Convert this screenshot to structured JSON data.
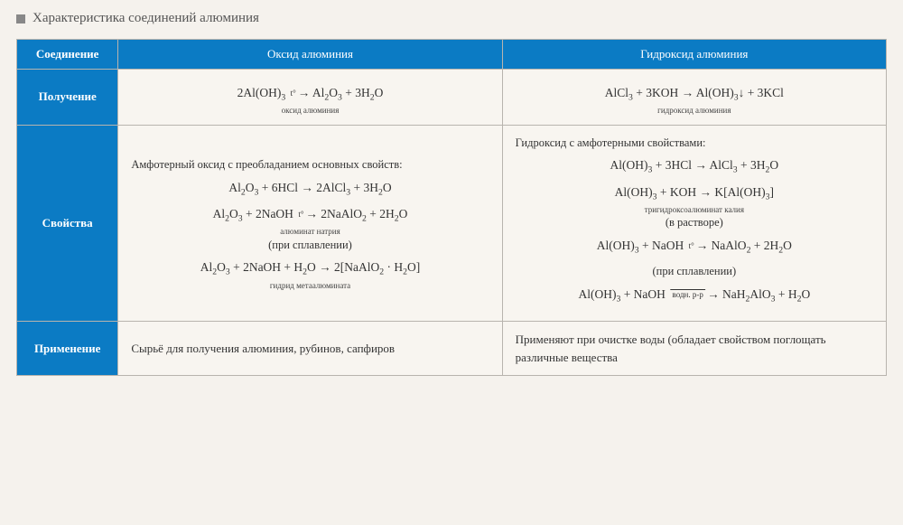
{
  "title": "Характеристика соединений алюминия",
  "table": {
    "columns": [
      "Соединение",
      "Оксид алюминия",
      "Гидроксид алюминия"
    ],
    "rows": {
      "preparation": {
        "label": "Получение",
        "oxide": {
          "formula_html": "2Al(OH)<sub>3</sub> <span class='arrow-label'>t°</span>→ Al<sub>2</sub>O<sub>3</sub> + 3H<sub>2</sub>O",
          "under": "оксид\nалюминия"
        },
        "hydroxide": {
          "formula_html": "AlCl<sub>3</sub> + 3KOH → Al(OH)<sub>3</sub>↓ + 3KCl",
          "under": "гидроксид\nалюминия"
        }
      },
      "properties": {
        "label": "Свойства",
        "oxide": {
          "intro": "Амфотерный оксид с преобладанием основных свойств:",
          "eq1_html": "Al<sub>2</sub>O<sub>3</sub> + 6HCl → 2AlCl<sub>3</sub> + 3H<sub>2</sub>O",
          "eq2_html": "Al<sub>2</sub>O<sub>3</sub> + 2NaOH <span class='arrow-label'>t°</span>→ 2NaAlO<sub>2</sub> + 2H<sub>2</sub>O",
          "eq2_under": "алюминат\nнатрия",
          "eq2_note": "(при сплавлении)",
          "eq3_html": "Al<sub>2</sub>O<sub>3</sub> + 2NaOH + H<sub>2</sub>O → 2[NaAlO<sub>2</sub> · H<sub>2</sub>O]",
          "eq3_under": "гидрид метаалюмината"
        },
        "hydroxide": {
          "intro": "Гидроксид с амфотерными свойствами:",
          "eq1_html": "Al(OH)<sub>3</sub> + 3HCl → AlCl<sub>3</sub> + 3H<sub>2</sub>O",
          "eq2_html": "Al(OH)<sub>3</sub> + KOH → K[Al(OH)<sub>3</sub>]",
          "eq2_under": "тригидроксоалюминат\nкалия",
          "eq2_note": "(в растворе)",
          "eq3_html": "Al(OH)<sub>3</sub> + NaOH <span class='arrow-label'>t°</span>→ NaAlO<sub>2</sub> + 2H<sub>2</sub>O",
          "eq3_note": "(при сплавлении)",
          "eq4_html": "Al(OH)<sub>3</sub> + NaOH <span class='overline arrow-label'>&nbsp;водн. р-р&nbsp;</span>→ NaH<sub>2</sub>AlO<sub>3</sub> + H<sub>2</sub>O"
        }
      },
      "application": {
        "label": "Применение",
        "oxide": "Сырьё для получения алюминия, рубинов, сапфиров",
        "hydroxide": "Применяют при очистке воды (обладает свойством поглощать различные вещества"
      }
    }
  },
  "colors": {
    "header_bg": "#0b7bc4",
    "header_text": "#ffffff",
    "border": "#b8b4ae",
    "page_bg": "#f5f2ed"
  }
}
